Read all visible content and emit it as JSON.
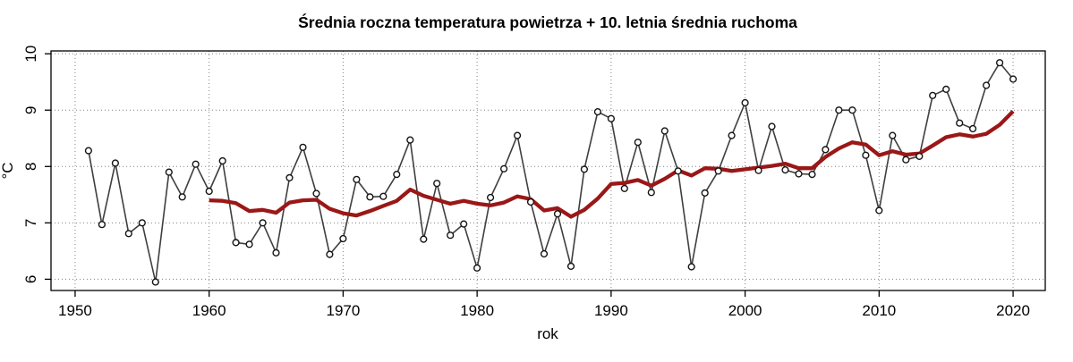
{
  "title": "Średnia roczna temperatura powietrza + 10. letnia średnia ruchoma",
  "chart_data": {
    "type": "line",
    "title": "Średnia roczna temperatura powietrza + 10. letnia średnia ruchoma",
    "xlabel": "rok",
    "ylabel": "°C",
    "xlim": [
      1948.2,
      2022.4
    ],
    "ylim": [
      5.8,
      10.05
    ],
    "x_ticks": [
      1950,
      1960,
      1970,
      1980,
      1990,
      2000,
      2010,
      2020
    ],
    "y_ticks": [
      6,
      7,
      8,
      9,
      10
    ],
    "grid": "dotted",
    "grid_color": "#808080",
    "axis_color": "#000000",
    "background": "#ffffff",
    "legend": "none",
    "series": [
      {
        "name": "annual_mean_temperature",
        "style": "line+markers",
        "marker": "open-circle",
        "color": "#3f3f3f",
        "marker_color": "#141414",
        "x": [
          1951,
          1952,
          1953,
          1954,
          1955,
          1956,
          1957,
          1958,
          1959,
          1960,
          1961,
          1962,
          1963,
          1964,
          1965,
          1966,
          1967,
          1968,
          1969,
          1970,
          1971,
          1972,
          1973,
          1974,
          1975,
          1976,
          1977,
          1978,
          1979,
          1980,
          1981,
          1982,
          1983,
          1984,
          1985,
          1986,
          1987,
          1988,
          1989,
          1990,
          1991,
          1992,
          1993,
          1994,
          1995,
          1996,
          1997,
          1998,
          1999,
          2000,
          2001,
          2002,
          2003,
          2004,
          2005,
          2006,
          2007,
          2008,
          2009,
          2010,
          2011,
          2012,
          2013,
          2014,
          2015,
          2016,
          2017,
          2018,
          2019,
          2020
        ],
        "values": [
          8.28,
          6.97,
          8.06,
          6.81,
          7.0,
          5.95,
          7.9,
          7.46,
          8.04,
          7.56,
          8.1,
          6.65,
          6.62,
          7.0,
          6.47,
          7.8,
          8.34,
          7.52,
          6.44,
          6.72,
          7.77,
          7.46,
          7.47,
          7.86,
          8.47,
          6.71,
          7.7,
          6.78,
          6.98,
          6.2,
          7.45,
          7.96,
          8.55,
          7.37,
          6.45,
          7.16,
          6.23,
          7.95,
          8.97,
          8.85,
          7.61,
          8.43,
          7.54,
          8.63,
          7.92,
          6.22,
          7.53,
          7.92,
          8.55,
          9.13,
          7.93,
          8.71,
          7.94,
          7.87,
          7.86,
          8.3,
          9.0,
          9.0,
          8.2,
          7.22,
          8.55,
          8.12,
          8.18,
          9.26,
          9.37,
          8.77,
          8.67,
          9.44,
          9.84,
          9.55
        ]
      },
      {
        "name": "moving_average_10yr",
        "style": "line",
        "marker": "none",
        "color": "#9b1717",
        "x": [
          1960,
          1961,
          1962,
          1963,
          1964,
          1965,
          1966,
          1967,
          1968,
          1969,
          1970,
          1971,
          1972,
          1973,
          1974,
          1975,
          1976,
          1977,
          1978,
          1979,
          1980,
          1981,
          1982,
          1983,
          1984,
          1985,
          1986,
          1987,
          1988,
          1989,
          1990,
          1991,
          1992,
          1993,
          1994,
          1995,
          1996,
          1997,
          1998,
          1999,
          2000,
          2001,
          2002,
          2003,
          2004,
          2005,
          2006,
          2007,
          2008,
          2009,
          2010,
          2011,
          2012,
          2013,
          2014,
          2015,
          2016,
          2017,
          2018,
          2019,
          2020
        ],
        "values": [
          7.4,
          7.39,
          7.35,
          7.21,
          7.23,
          7.18,
          7.36,
          7.4,
          7.41,
          7.25,
          7.17,
          7.13,
          7.21,
          7.3,
          7.39,
          7.59,
          7.48,
          7.41,
          7.34,
          7.39,
          7.34,
          7.31,
          7.36,
          7.47,
          7.42,
          7.22,
          7.26,
          7.11,
          7.23,
          7.43,
          7.69,
          7.71,
          7.76,
          7.66,
          7.78,
          7.93,
          7.84,
          7.97,
          7.96,
          7.92,
          7.95,
          7.98,
          8.01,
          8.05,
          7.97,
          7.97,
          8.17,
          8.32,
          8.43,
          8.39,
          8.2,
          8.27,
          8.21,
          8.23,
          8.37,
          8.52,
          8.57,
          8.53,
          8.58,
          8.74,
          8.98
        ]
      }
    ]
  }
}
